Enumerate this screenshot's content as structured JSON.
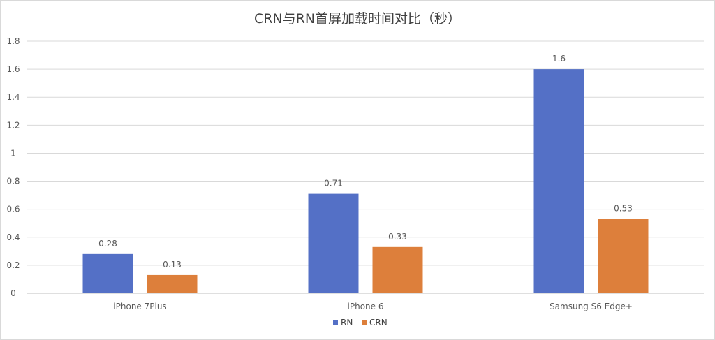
{
  "chart_data": {
    "type": "bar",
    "title": "CRN与RN首屏加载时间对比（秒）",
    "categories": [
      "iPhone 7Plus",
      "iPhone 6",
      "Samsung S6 Edge+"
    ],
    "series": [
      {
        "name": "RN",
        "values": [
          0.28,
          0.71,
          1.6
        ],
        "labels": [
          "0.28",
          "0.71",
          "1.6"
        ],
        "color": "#5470c6"
      },
      {
        "name": "CRN",
        "values": [
          0.13,
          0.33,
          0.53
        ],
        "labels": [
          "0.13",
          "0.33",
          "0.53"
        ],
        "color": "#dd7f3b"
      }
    ],
    "ylim": [
      0,
      1.8
    ],
    "yticks": [
      "0",
      "0.2",
      "0.4",
      "0.6",
      "0.8",
      "1",
      "1.2",
      "1.4",
      "1.6",
      "1.8"
    ],
    "xlabel": "",
    "ylabel": "",
    "grid": true,
    "legend": "bottom-center"
  }
}
